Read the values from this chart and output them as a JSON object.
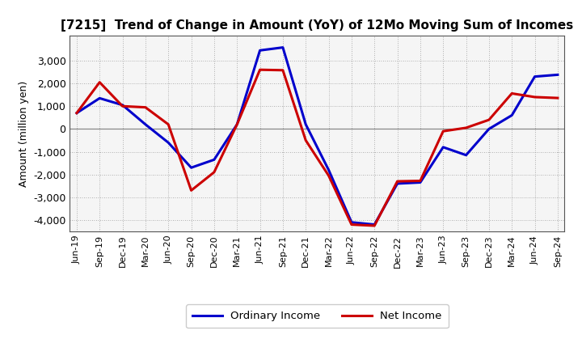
{
  "title": "[7215]  Trend of Change in Amount (YoY) of 12Mo Moving Sum of Incomes",
  "ylabel": "Amount (million yen)",
  "x_labels": [
    "Jun-19",
    "Sep-19",
    "Dec-19",
    "Mar-20",
    "Jun-20",
    "Sep-20",
    "Dec-20",
    "Mar-21",
    "Jun-21",
    "Sep-21",
    "Dec-21",
    "Mar-22",
    "Jun-22",
    "Sep-22",
    "Dec-22",
    "Mar-23",
    "Jun-23",
    "Sep-23",
    "Dec-23",
    "Mar-24",
    "Jun-24",
    "Sep-24"
  ],
  "ordinary_income": [
    700,
    1350,
    1050,
    200,
    -600,
    -1700,
    -1350,
    200,
    3450,
    3580,
    200,
    -1800,
    -4100,
    -4200,
    -2400,
    -2350,
    -800,
    -1150,
    0,
    600,
    2300,
    2380
  ],
  "net_income": [
    700,
    2050,
    1000,
    950,
    200,
    -2700,
    -1900,
    200,
    2600,
    2580,
    -500,
    -2050,
    -4200,
    -4250,
    -2300,
    -2280,
    -100,
    50,
    400,
    1560,
    1400,
    1360
  ],
  "ordinary_income_color": "#0000cc",
  "net_income_color": "#cc0000",
  "background_color": "#ffffff",
  "plot_bg_color": "#f5f5f5",
  "grid_color": "#999999",
  "ylim": [
    -4500,
    4100
  ],
  "yticks": [
    -4000,
    -3000,
    -2000,
    -1000,
    0,
    1000,
    2000,
    3000
  ],
  "legend_labels": [
    "Ordinary Income",
    "Net Income"
  ],
  "line_width": 2.2,
  "title_fontsize": 11,
  "ylabel_fontsize": 9,
  "tick_fontsize": 8
}
